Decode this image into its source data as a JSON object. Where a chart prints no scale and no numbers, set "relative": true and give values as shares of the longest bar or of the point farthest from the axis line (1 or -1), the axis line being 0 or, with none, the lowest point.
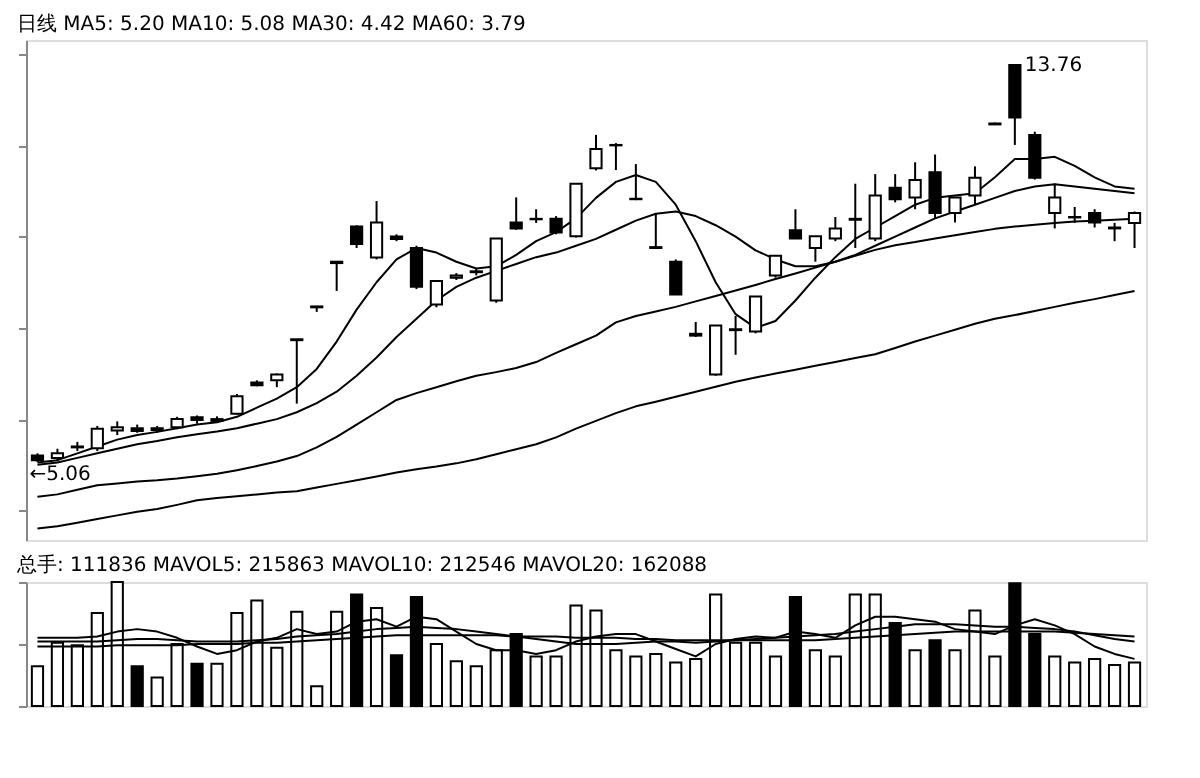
{
  "chart_data": [
    {
      "type": "candlestick",
      "title": "日线 MA5: 5.20 MA10: 5.08 MA30: 4.42 MA60: 3.79",
      "categories": [
        null,
        null,
        null,
        null,
        null,
        null,
        null,
        null,
        null,
        null,
        null,
        null,
        null,
        null,
        null,
        null,
        null,
        null,
        null,
        null,
        null,
        null,
        null,
        null,
        null,
        null,
        null,
        null,
        null,
        null,
        null,
        null,
        null,
        null,
        null,
        null,
        null,
        null,
        null,
        null,
        null,
        null,
        null,
        null,
        null,
        null,
        null,
        null,
        null,
        null,
        null,
        null,
        null,
        null,
        null,
        null
      ],
      "ohlc": [
        [
          5.2,
          5.25,
          5.06,
          5.1
        ],
        [
          5.15,
          5.35,
          5.08,
          5.25
        ],
        [
          5.38,
          5.5,
          5.3,
          5.4
        ],
        [
          5.36,
          5.85,
          5.3,
          5.79
        ],
        [
          5.75,
          5.95,
          5.65,
          5.82
        ],
        [
          5.8,
          5.88,
          5.7,
          5.74
        ],
        [
          5.76,
          5.85,
          5.7,
          5.8
        ],
        [
          5.82,
          6.05,
          5.78,
          6.0
        ],
        [
          6.04,
          6.08,
          5.9,
          5.98
        ],
        [
          5.96,
          6.06,
          5.92,
          6.0
        ],
        [
          6.12,
          6.55,
          6.1,
          6.5
        ],
        [
          6.8,
          6.85,
          6.72,
          6.74
        ],
        [
          6.85,
          7.0,
          6.7,
          6.98
        ],
        [
          7.73,
          7.75,
          6.34,
          7.75
        ],
        [
          8.45,
          8.48,
          8.35,
          8.47
        ],
        [
          9.42,
          9.45,
          8.81,
          9.45
        ],
        [
          10.22,
          10.25,
          9.75,
          9.84
        ],
        [
          9.54,
          10.78,
          9.5,
          10.31
        ],
        [
          10.0,
          10.05,
          9.9,
          9.95
        ],
        [
          9.75,
          9.8,
          8.85,
          8.9
        ],
        [
          8.51,
          9.03,
          8.45,
          9.03
        ],
        [
          9.1,
          9.2,
          9.05,
          9.15
        ],
        [
          9.22,
          9.3,
          9.15,
          9.24
        ],
        [
          8.6,
          9.96,
          8.55,
          9.96
        ],
        [
          10.31,
          10.86,
          10.15,
          10.18
        ],
        [
          10.38,
          10.6,
          10.3,
          10.39
        ],
        [
          10.39,
          10.45,
          10.05,
          10.09
        ],
        [
          10.01,
          11.16,
          9.98,
          11.16
        ],
        [
          11.5,
          12.23,
          11.45,
          11.92
        ],
        [
          12.0,
          12.05,
          11.46,
          12.01
        ],
        [
          10.82,
          11.59,
          10.8,
          10.83
        ],
        [
          9.77,
          10.52,
          9.75,
          9.75
        ],
        [
          9.45,
          9.5,
          8.73,
          8.73
        ],
        [
          7.87,
          8.13,
          7.8,
          7.83
        ],
        [
          6.98,
          8.05,
          6.95,
          8.05
        ],
        [
          7.95,
          8.26,
          7.41,
          7.97
        ],
        [
          7.92,
          8.69,
          7.88,
          8.69
        ],
        [
          9.15,
          9.58,
          9.1,
          9.58
        ],
        [
          10.14,
          10.6,
          9.95,
          9.96
        ],
        [
          9.75,
          10.01,
          9.45,
          10.01
        ],
        [
          9.96,
          10.43,
          9.9,
          10.18
        ],
        [
          10.37,
          11.16,
          9.75,
          10.39
        ],
        [
          9.96,
          11.37,
          9.9,
          10.9
        ],
        [
          11.07,
          11.37,
          10.75,
          10.82
        ],
        [
          10.86,
          11.63,
          10.6,
          11.24
        ],
        [
          11.41,
          11.8,
          10.4,
          10.52
        ],
        [
          10.52,
          10.86,
          10.31,
          10.86
        ],
        [
          10.9,
          11.54,
          10.7,
          11.29
        ],
        [
          12.46,
          12.5,
          12.46,
          12.48
        ],
        [
          13.76,
          13.76,
          12.01,
          12.61
        ],
        [
          12.23,
          12.3,
          11.25,
          11.29
        ],
        [
          10.52,
          11.16,
          10.18,
          10.86
        ],
        [
          10.42,
          10.65,
          10.3,
          10.43
        ],
        [
          10.52,
          10.6,
          10.2,
          10.31
        ],
        [
          10.2,
          10.3,
          9.9,
          10.18
        ],
        [
          10.3,
          10.55,
          9.75,
          10.52
        ]
      ],
      "colors": [
        "#000000",
        "#ffffff",
        "#ffffff",
        "#ffffff",
        "#ffffff",
        "#000000",
        "#ffffff",
        "#ffffff",
        "#000000",
        "#ffffff",
        "#ffffff",
        "#000000",
        "#ffffff",
        "#ffffff",
        "#ffffff",
        "#ffffff",
        "#000000",
        "#ffffff",
        "#000000",
        "#000000",
        "#ffffff",
        "#ffffff",
        "#ffffff",
        "#ffffff",
        "#000000",
        "#ffffff",
        "#000000",
        "#ffffff",
        "#ffffff",
        "#ffffff",
        "#ffffff",
        "#000000",
        "#000000",
        "#000000",
        "#ffffff",
        "#ffffff",
        "#ffffff",
        "#ffffff",
        "#000000",
        "#ffffff",
        "#ffffff",
        "#ffffff",
        "#ffffff",
        "#000000",
        "#ffffff",
        "#000000",
        "#ffffff",
        "#ffffff",
        "#ffffff",
        "#000000",
        "#000000",
        "#ffffff",
        "#ffffff",
        "#000000",
        "#000000",
        "#ffffff"
      ],
      "series": [
        {
          "type": "line",
          "color": "#000000",
          "values": [
            5.05,
            5.1,
            5.25,
            5.4,
            5.55,
            5.65,
            5.72,
            5.8,
            5.88,
            5.93,
            6.05,
            6.25,
            6.45,
            6.7,
            7.1,
            7.7,
            8.4,
            9.0,
            9.5,
            9.75,
            9.65,
            9.45,
            9.3,
            9.35,
            9.6,
            9.9,
            10.1,
            10.4,
            10.85,
            11.2,
            11.35,
            11.2,
            10.7,
            9.9,
            9.0,
            8.3,
            8.0,
            8.15,
            8.6,
            9.1,
            9.55,
            9.95,
            10.2,
            10.45,
            10.7,
            10.85,
            10.9,
            10.95,
            11.3,
            11.7,
            11.7,
            11.75,
            11.55,
            11.3,
            11.1,
            11.05
          ]
        },
        {
          "type": "line",
          "color": "#000000",
          "values": [
            5.0,
            5.05,
            5.15,
            5.25,
            5.35,
            5.45,
            5.52,
            5.6,
            5.67,
            5.73,
            5.8,
            5.9,
            6.0,
            6.15,
            6.35,
            6.6,
            6.95,
            7.35,
            7.8,
            8.2,
            8.6,
            8.9,
            9.1,
            9.25,
            9.4,
            9.55,
            9.65,
            9.8,
            9.95,
            10.15,
            10.35,
            10.5,
            10.55,
            10.45,
            10.25,
            10.0,
            9.7,
            9.5,
            9.35,
            9.35,
            9.45,
            9.6,
            9.8,
            10.0,
            10.2,
            10.4,
            10.55,
            10.7,
            10.85,
            11.0,
            11.1,
            11.15,
            11.1,
            11.05,
            11.0,
            10.95
          ]
        },
        {
          "type": "line",
          "color": "#000000",
          "values": [
            4.3,
            4.35,
            4.45,
            4.55,
            4.59,
            4.63,
            4.66,
            4.7,
            4.75,
            4.8,
            4.88,
            4.97,
            5.07,
            5.19,
            5.38,
            5.61,
            5.88,
            6.15,
            6.42,
            6.57,
            6.7,
            6.83,
            6.95,
            7.03,
            7.12,
            7.25,
            7.45,
            7.64,
            7.83,
            8.12,
            8.26,
            8.36,
            8.46,
            8.58,
            8.7,
            8.82,
            8.94,
            9.07,
            9.19,
            9.32,
            9.45,
            9.58,
            9.71,
            9.81,
            9.88,
            9.96,
            10.03,
            10.1,
            10.17,
            10.22,
            10.26,
            10.3,
            10.33,
            10.35,
            10.37,
            10.39
          ]
        },
        {
          "type": "line",
          "color": "#000000",
          "values": [
            3.6,
            3.65,
            3.73,
            3.81,
            3.89,
            3.97,
            4.03,
            4.12,
            4.22,
            4.27,
            4.31,
            4.35,
            4.39,
            4.42,
            4.5,
            4.58,
            4.66,
            4.74,
            4.83,
            4.9,
            4.96,
            5.03,
            5.12,
            5.23,
            5.34,
            5.45,
            5.6,
            5.79,
            5.96,
            6.13,
            6.28,
            6.38,
            6.49,
            6.6,
            6.71,
            6.82,
            6.91,
            7.0,
            7.08,
            7.17,
            7.25,
            7.34,
            7.42,
            7.56,
            7.7,
            7.83,
            7.96,
            8.09,
            8.2,
            8.28,
            8.37,
            8.46,
            8.55,
            8.63,
            8.72,
            8.81
          ]
        }
      ],
      "ylim": [
        3.35,
        14.31
      ],
      "tick_labels": false,
      "annotations": [
        "13.76",
        "←5.06"
      ]
    },
    {
      "type": "bar",
      "relative": true,
      "title": "总手: 111836 MAVOL5: 215863 MAVOL10: 212546 MAVOL20: 162088",
      "categories": [
        null,
        null,
        null,
        null,
        null,
        null,
        null,
        null,
        null,
        null,
        null,
        null,
        null,
        null,
        null,
        null,
        null,
        null,
        null,
        null,
        null,
        null,
        null,
        null,
        null,
        null,
        null,
        null,
        null,
        null,
        null,
        null,
        null,
        null,
        null,
        null,
        null,
        null,
        null,
        null,
        null,
        null,
        null,
        null,
        null,
        null,
        null,
        null,
        null,
        null,
        null,
        null,
        null,
        null,
        null,
        null
      ],
      "series": [
        {
          "type": "bar",
          "values": [
            0.32,
            0.51,
            0.49,
            0.75,
            1.0,
            0.32,
            0.23,
            0.5,
            0.34,
            0.34,
            0.75,
            0.85,
            0.47,
            0.76,
            0.16,
            0.76,
            0.9,
            0.79,
            0.41,
            0.88,
            0.5,
            0.36,
            0.32,
            0.45,
            0.58,
            0.4,
            0.4,
            0.81,
            0.77,
            0.45,
            0.4,
            0.42,
            0.35,
            0.38,
            0.9,
            0.51,
            0.51,
            0.4,
            0.88,
            0.45,
            0.4,
            0.9,
            0.9,
            0.67,
            0.45,
            0.53,
            0.45,
            0.77,
            0.4,
            0.99,
            0.58,
            0.4,
            0.35,
            0.38,
            0.33,
            0.35
          ],
          "colors": [
            "#ffffff",
            "#ffffff",
            "#ffffff",
            "#ffffff",
            "#ffffff",
            "#000000",
            "#ffffff",
            "#ffffff",
            "#000000",
            "#ffffff",
            "#ffffff",
            "#ffffff",
            "#ffffff",
            "#ffffff",
            "#ffffff",
            "#ffffff",
            "#000000",
            "#ffffff",
            "#000000",
            "#000000",
            "#ffffff",
            "#ffffff",
            "#ffffff",
            "#ffffff",
            "#000000",
            "#ffffff",
            "#ffffff",
            "#ffffff",
            "#ffffff",
            "#ffffff",
            "#ffffff",
            "#ffffff",
            "#ffffff",
            "#ffffff",
            "#ffffff",
            "#ffffff",
            "#ffffff",
            "#ffffff",
            "#000000",
            "#ffffff",
            "#ffffff",
            "#ffffff",
            "#ffffff",
            "#000000",
            "#ffffff",
            "#000000",
            "#ffffff",
            "#ffffff",
            "#ffffff",
            "#000000",
            "#000000",
            "#ffffff",
            "#ffffff",
            "#ffffff",
            "#ffffff",
            "#ffffff"
          ]
        },
        {
          "type": "line",
          "color": "#000000",
          "values": [
            0.55,
            0.55,
            0.55,
            0.56,
            0.6,
            0.62,
            0.6,
            0.55,
            0.48,
            0.42,
            0.45,
            0.52,
            0.55,
            0.62,
            0.58,
            0.6,
            0.68,
            0.7,
            0.64,
            0.72,
            0.7,
            0.6,
            0.5,
            0.45,
            0.45,
            0.42,
            0.45,
            0.52,
            0.56,
            0.58,
            0.58,
            0.52,
            0.46,
            0.4,
            0.5,
            0.54,
            0.56,
            0.55,
            0.6,
            0.58,
            0.55,
            0.65,
            0.72,
            0.72,
            0.7,
            0.68,
            0.62,
            0.6,
            0.58,
            0.65,
            0.7,
            0.65,
            0.58,
            0.48,
            0.42,
            0.38
          ]
        },
        {
          "type": "line",
          "color": "#000000",
          "values": [
            0.52,
            0.52,
            0.52,
            0.52,
            0.53,
            0.54,
            0.54,
            0.53,
            0.52,
            0.52,
            0.52,
            0.53,
            0.54,
            0.56,
            0.57,
            0.58,
            0.6,
            0.62,
            0.63,
            0.64,
            0.63,
            0.62,
            0.6,
            0.58,
            0.56,
            0.54,
            0.52,
            0.5,
            0.5,
            0.5,
            0.51,
            0.52,
            0.52,
            0.51,
            0.52,
            0.53,
            0.54,
            0.55,
            0.56,
            0.57,
            0.58,
            0.6,
            0.62,
            0.64,
            0.66,
            0.66,
            0.66,
            0.65,
            0.64,
            0.64,
            0.63,
            0.62,
            0.6,
            0.57,
            0.54,
            0.52
          ]
        },
        {
          "type": "line",
          "color": "#000000",
          "values": [
            0.48,
            0.48,
            0.48,
            0.48,
            0.49,
            0.49,
            0.49,
            0.49,
            0.5,
            0.5,
            0.5,
            0.51,
            0.51,
            0.52,
            0.53,
            0.54,
            0.55,
            0.56,
            0.57,
            0.57,
            0.57,
            0.57,
            0.57,
            0.57,
            0.56,
            0.56,
            0.56,
            0.55,
            0.55,
            0.55,
            0.54,
            0.54,
            0.53,
            0.53,
            0.53,
            0.53,
            0.53,
            0.53,
            0.53,
            0.53,
            0.54,
            0.55,
            0.56,
            0.57,
            0.58,
            0.59,
            0.6,
            0.6,
            0.6,
            0.6,
            0.6,
            0.6,
            0.59,
            0.58,
            0.57,
            0.56
          ]
        }
      ],
      "tick_labels": false
    }
  ]
}
